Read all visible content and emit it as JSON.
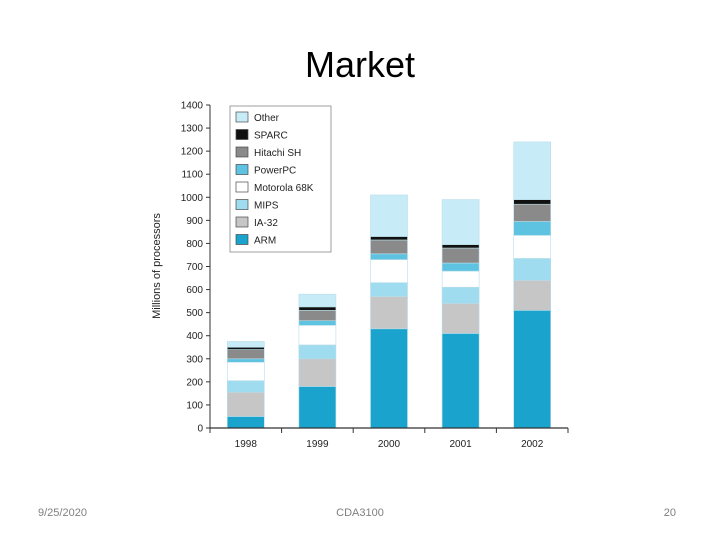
{
  "slide": {
    "title": "Market",
    "footer_date": "9/25/2020",
    "footer_course": "CDA3100",
    "page_number": "20"
  },
  "chart_data": {
    "type": "bar",
    "stacked": true,
    "title": "",
    "xlabel": "",
    "ylabel": "Millions of processors",
    "ylim": [
      0,
      1400
    ],
    "yticks": [
      0,
      100,
      200,
      300,
      400,
      500,
      600,
      700,
      800,
      900,
      1000,
      1100,
      1200,
      1300,
      1400
    ],
    "categories": [
      "1998",
      "1999",
      "2000",
      "2001",
      "2002"
    ],
    "legend_position": "top-left",
    "grid": false,
    "series": [
      {
        "name": "ARM",
        "color": "#1aa3cc",
        "values": [
          50,
          180,
          430,
          410,
          510
        ]
      },
      {
        "name": "IA-32",
        "color": "#c6c6c6",
        "values": [
          105,
          120,
          140,
          130,
          130
        ]
      },
      {
        "name": "MIPS",
        "color": "#9fdcef",
        "values": [
          50,
          60,
          60,
          70,
          95
        ]
      },
      {
        "name": "Motorola 68K",
        "color": "#ffffff",
        "values": [
          80,
          85,
          100,
          70,
          100
        ]
      },
      {
        "name": "PowerPC",
        "color": "#5ec3e0",
        "values": [
          15,
          20,
          25,
          35,
          60
        ]
      },
      {
        "name": "Hitachi SH",
        "color": "#8a8a8a",
        "values": [
          40,
          45,
          60,
          65,
          75
        ]
      },
      {
        "name": "SPARC",
        "color": "#111111",
        "values": [
          10,
          15,
          15,
          15,
          20
        ]
      },
      {
        "name": "Other",
        "color": "#c8ecf7",
        "values": [
          25,
          55,
          180,
          195,
          250
        ]
      }
    ]
  }
}
